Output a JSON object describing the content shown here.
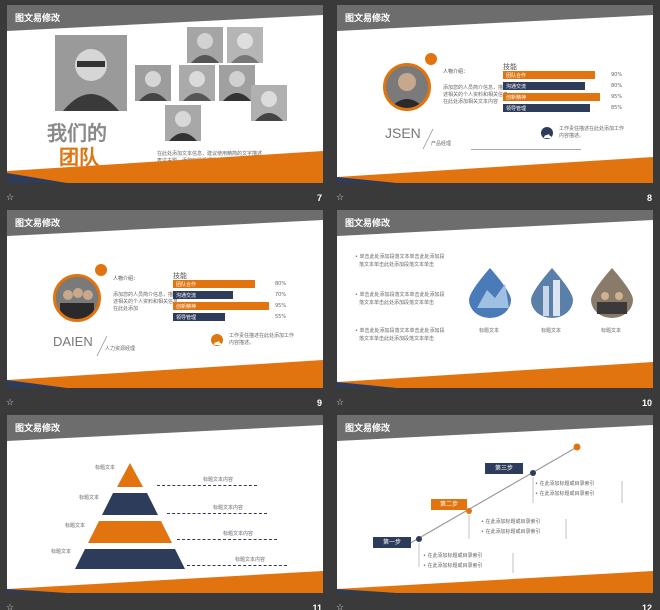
{
  "colors": {
    "orange": "#e2740f",
    "navy": "#2e3c5c",
    "header": "#6d6d6d"
  },
  "slides": {
    "s7": {
      "header": "图文易修改",
      "number": "7",
      "title_line1": "我们的",
      "title_line2": "团队",
      "caption_line1": "在此处添加文本信息，建议使用精简的文字描述",
      "caption_line2": "表达主题。添加标题后调整位置"
    },
    "s8": {
      "header": "图文易修改",
      "number": "8",
      "intro_label": "人物介绍：",
      "intro_text": [
        "添加您的人员简介信息，描",
        "述相关的个人资料和相关信息，",
        "在此处添加相关文本内容"
      ],
      "skills_title": "技能",
      "skills": [
        {
          "label": "团队合作",
          "value": "90%",
          "pct": 0.9,
          "color": "orange"
        },
        {
          "label": "沟通交流",
          "value": "80%",
          "pct": 0.8,
          "color": "navy"
        },
        {
          "label": "创新精神",
          "value": "95%",
          "pct": 0.95,
          "color": "orange"
        },
        {
          "label": "领导管理",
          "value": "85%",
          "pct": 0.85,
          "color": "navy"
        }
      ],
      "name": "JSEN",
      "role": "产品经理",
      "work_text": [
        "工作责任描述在此处添加工作",
        "内容描述。"
      ]
    },
    "s9": {
      "header": "图文易修改",
      "number": "9",
      "intro_label": "人物介绍：",
      "intro_text": [
        "添加您的人员简介信息，描",
        "述相关的个人资料和相关信息",
        "在此处添加"
      ],
      "skills_title": "技能",
      "skills": [
        {
          "label": "团队合作",
          "value": "80%",
          "pct": 0.8,
          "color": "orange"
        },
        {
          "label": "沟通交流",
          "value": "70%",
          "pct": 0.7,
          "color": "navy"
        },
        {
          "label": "创新精神",
          "value": "95%",
          "pct": 0.95,
          "color": "orange"
        },
        {
          "label": "领导管理",
          "value": "55%",
          "pct": 0.55,
          "color": "navy"
        }
      ],
      "name": "DAIEN",
      "role": "人力资源经理",
      "work_text": [
        "工作责任描述在此处添加工作",
        "内容描述。"
      ]
    },
    "s10": {
      "header": "图文易修改",
      "number": "10",
      "bullets": [
        [
          "• 单击此处添加段落文本单击此处添加段",
          "落文本单击此处添加段落文本单击"
        ],
        [
          "• 单击此处添加段落文本单击此处添加段",
          "落文本单击此处添加段落文本单击"
        ],
        [
          "• 单击此处添加段落文本单击此处添加段",
          "落文本单击此处添加段落文本单击"
        ]
      ],
      "captions": [
        "标题文本",
        "标题文本",
        "标题文本"
      ]
    },
    "s11": {
      "header": "图文易修改",
      "number": "11",
      "levels": [
        {
          "label": "标题文本",
          "content": "标题文本内容"
        },
        {
          "label": "标题文本",
          "content": "标题文本内容"
        },
        {
          "label": "标题文本",
          "content": "标题文本内容"
        },
        {
          "label": "标题文本",
          "content": "标题文本内容"
        }
      ]
    },
    "s12": {
      "header": "图文易修改",
      "number": "12",
      "steps": [
        {
          "label": "第一步",
          "items": [
            "• 在此添加标题或目录索引",
            "• 在此添加标题或目录索引"
          ]
        },
        {
          "label": "第二步",
          "items": [
            "• 在此添加标题或目录索引",
            "• 在此添加标题或目录索引"
          ]
        },
        {
          "label": "第三步",
          "items": [
            "• 在此添加标题或目录索引",
            "• 在此添加标题或目录索引"
          ]
        }
      ]
    }
  },
  "icons": {
    "star": "☆"
  }
}
